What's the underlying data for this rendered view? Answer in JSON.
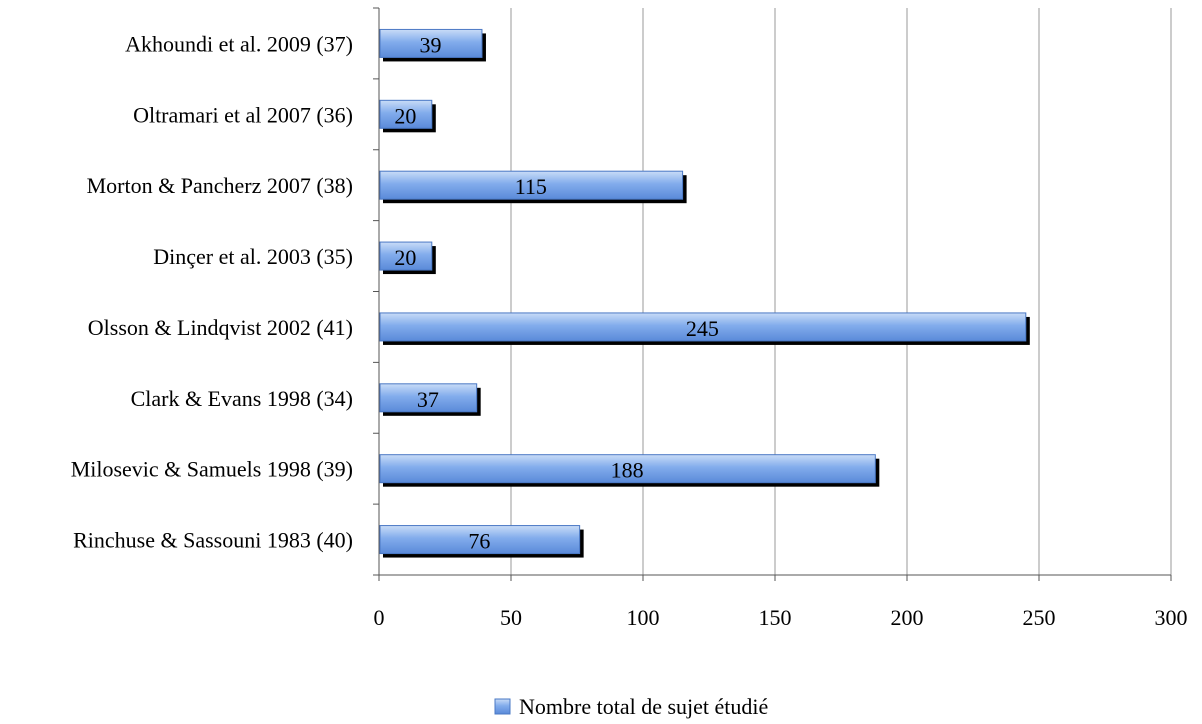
{
  "chart_data": {
    "type": "bar",
    "orientation": "horizontal",
    "categories": [
      "Akhoundi et al. 2009 (37)",
      "Oltramari et al 2007 (36)",
      "Morton & Pancherz 2007 (38)",
      "Dinçer et al. 2003 (35)",
      "Olsson & Lindqvist 2002 (41)",
      "Clark & Evans 1998 (34)",
      "Milosevic & Samuels 1998 (39)",
      "Rinchuse & Sassouni 1983 (40)"
    ],
    "series": [
      {
        "name": "Nombre total de sujet étudié",
        "values": [
          39,
          20,
          115,
          20,
          245,
          37,
          188,
          76
        ],
        "color": "#6f9fe6"
      }
    ],
    "xlim": [
      0,
      300
    ],
    "xticks": [
      "0",
      "50",
      "100",
      "150",
      "200",
      "250",
      "300"
    ],
    "grid": "vertical",
    "legend": "bottom",
    "data_labels": true
  }
}
